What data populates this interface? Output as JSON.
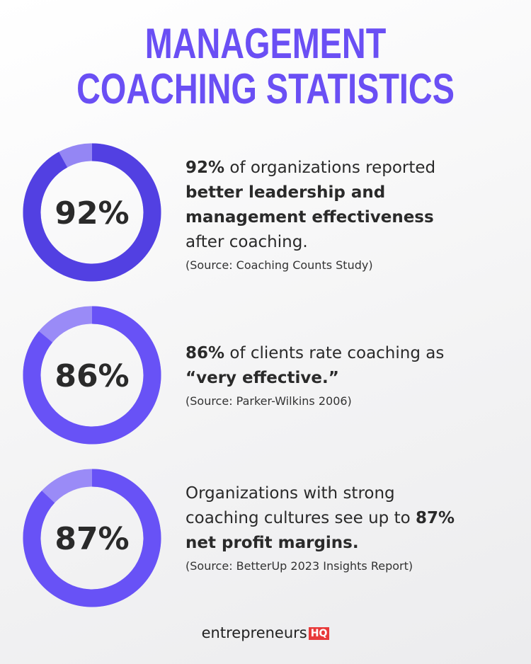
{
  "title": [
    "MANAGEMENT",
    "COACHING STATISTICS"
  ],
  "stats": [
    {
      "value": 92,
      "value_label": "92%",
      "color": "#5240e2",
      "track_color": "#9486f4",
      "lines": [
        [
          {
            "text": "92%",
            "bold": true
          },
          {
            "text": " of organizations reported",
            "bold": false
          }
        ],
        [
          {
            "text": "better leadership and",
            "bold": true
          }
        ],
        [
          {
            "text": "management effectiveness",
            "bold": true
          }
        ],
        [
          {
            "text": "after coaching.",
            "bold": false
          }
        ]
      ],
      "source": "(Source: Coaching Counts Study)"
    },
    {
      "value": 86,
      "value_label": "86%",
      "color": "#6852f6",
      "track_color": "#9a8bf7",
      "lines": [
        [
          {
            "text": "86%",
            "bold": true
          },
          {
            "text": " of clients rate coaching as",
            "bold": false
          }
        ],
        [
          {
            "text": "“very effective.”",
            "bold": true
          }
        ]
      ],
      "source": "(Source: Parker-Wilkins 2006)"
    },
    {
      "value": 87,
      "value_label": "87%",
      "color": "#6852f6",
      "track_color": "#9a8bf7",
      "lines": [
        [
          {
            "text": "Organizations with strong",
            "bold": false
          }
        ],
        [
          {
            "text": "coaching cultures see up to ",
            "bold": false
          },
          {
            "text": "87%",
            "bold": true
          }
        ],
        [
          {
            "text": "net profit margins.",
            "bold": true
          }
        ]
      ],
      "source": "(Source: BetterUp 2023 Insights Report)"
    }
  ],
  "logo": {
    "text": "entrepreneurs",
    "badge": "HQ"
  }
}
